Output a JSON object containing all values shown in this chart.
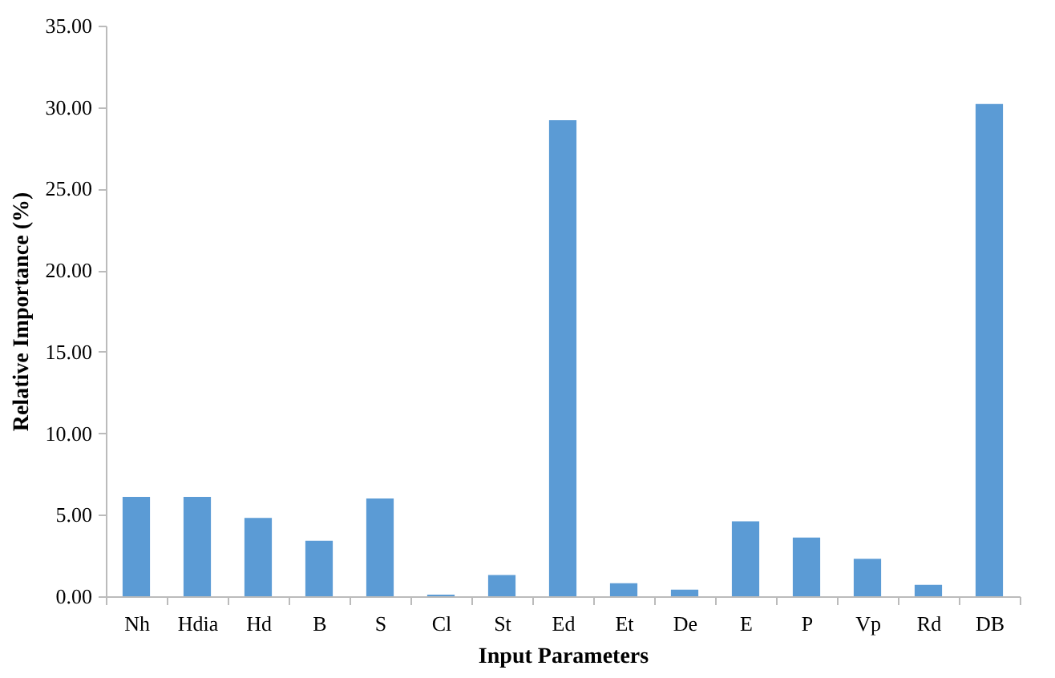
{
  "chart_data": {
    "type": "bar",
    "xlabel": "Input Parameters",
    "ylabel": "Relative Importance (%)",
    "categories": [
      "Nh",
      "Hdia",
      "Hd",
      "B",
      "S",
      "Cl",
      "St",
      "Ed",
      "Et",
      "De",
      "E",
      "P",
      "Vp",
      "Rd",
      "DB"
    ],
    "values": [
      6.1,
      6.1,
      4.8,
      3.4,
      6.0,
      0.1,
      1.3,
      29.2,
      0.8,
      0.4,
      4.6,
      3.6,
      2.3,
      0.7,
      30.2
    ],
    "color": "#5b9bd5",
    "ylim": [
      0,
      35
    ],
    "yticks": [
      {
        "value": 0,
        "label": "0.00"
      },
      {
        "value": 5,
        "label": "5.00"
      },
      {
        "value": 10,
        "label": "10.00"
      },
      {
        "value": 15,
        "label": "15.00"
      },
      {
        "value": 20,
        "label": "20.00"
      },
      {
        "value": 25,
        "label": "25.00"
      },
      {
        "value": 30,
        "label": "30.00"
      },
      {
        "value": 35,
        "label": "35.00"
      }
    ],
    "grid": false
  }
}
